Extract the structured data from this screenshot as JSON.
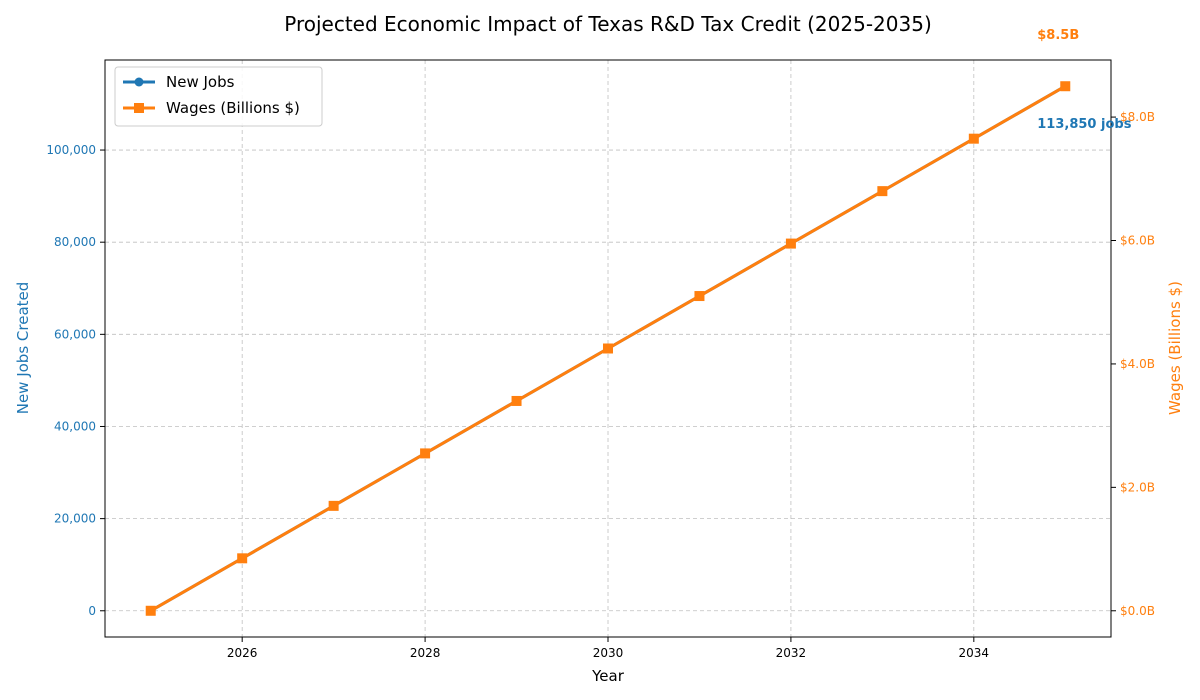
{
  "chart_data": {
    "type": "line",
    "title": "Projected Economic Impact of Texas R&D Tax Credit (2025-2035)",
    "xlabel": "Year",
    "ylabel_left": "New Jobs Created",
    "ylabel_right": "Wages (Billions $)",
    "x": [
      2025,
      2026,
      2027,
      2028,
      2029,
      2030,
      2031,
      2032,
      2033,
      2034,
      2035
    ],
    "x_ticks": [
      2026,
      2028,
      2030,
      2032,
      2034
    ],
    "xlim": [
      2024.5,
      2035.5
    ],
    "ylim_left": [
      -5692.5,
      119542.5
    ],
    "ylim_right": [
      -0.425,
      8.925
    ],
    "y_ticks_left": [
      0,
      20000,
      40000,
      60000,
      80000,
      100000
    ],
    "y_ticks_right": [
      0,
      2,
      4,
      6,
      8
    ],
    "series": [
      {
        "name": "New Jobs",
        "axis": "left",
        "color": "#1f77b4",
        "marker": "circle",
        "values": [
          0,
          11385,
          22770,
          34155,
          45540,
          56925,
          68310,
          79695,
          91080,
          102465,
          113850
        ]
      },
      {
        "name": "Wages (Billions $)",
        "axis": "right",
        "color": "#ff7f0e",
        "marker": "square",
        "values": [
          0,
          0.85,
          1.7,
          2.55,
          3.4,
          4.25,
          5.1,
          5.95,
          6.8,
          7.65,
          8.5
        ]
      }
    ],
    "annotations": [
      {
        "text": "113,850 jobs",
        "x": 2035,
        "series": "New Jobs",
        "color": "#1f77b4"
      },
      {
        "text": "$8.5B",
        "x": 2035,
        "series": "Wages (Billions $)",
        "color": "#ff7f0e"
      }
    ],
    "grid": true,
    "legend_position": "top-left",
    "colors": {
      "left_axis": "#1f77b4",
      "right_axis": "#ff7f0e",
      "grid": "#b0b0b0"
    }
  }
}
